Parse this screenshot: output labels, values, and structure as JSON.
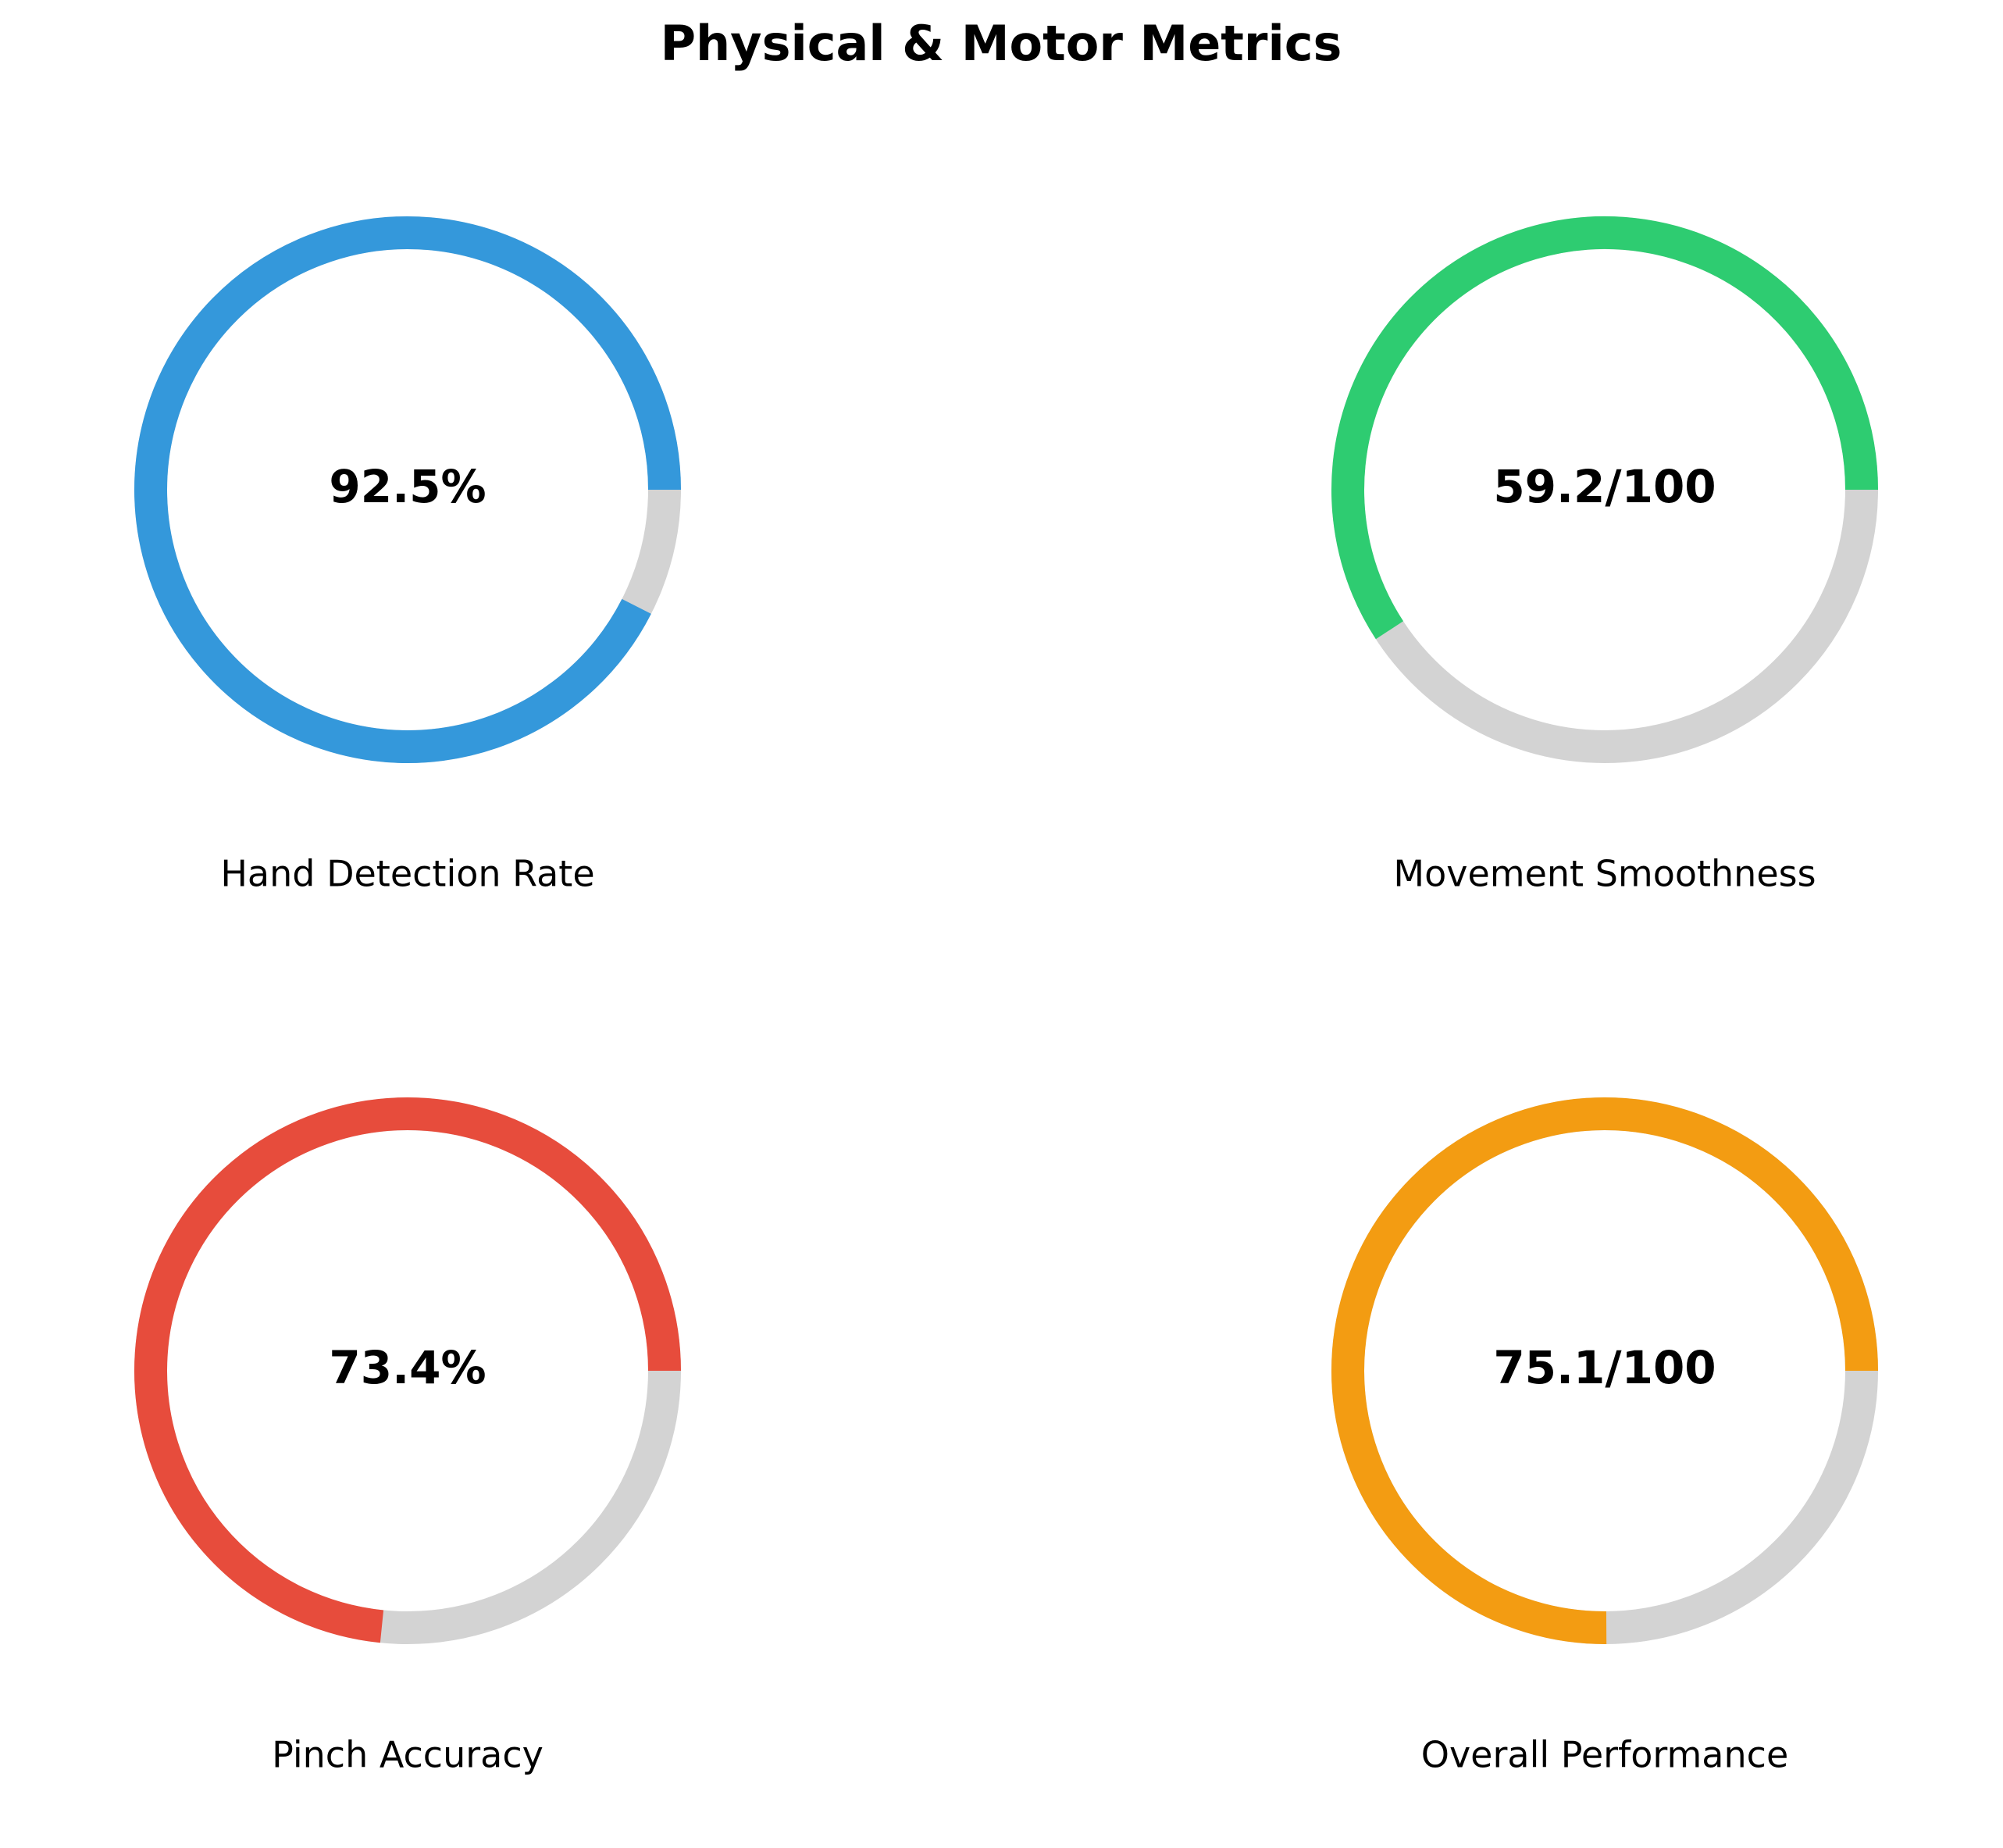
{
  "chart_data": {
    "type": "gauge",
    "title": "Physical & Motor Metrics",
    "track_color": "#d3d3d3",
    "gauges": [
      {
        "label": "Hand Detection Rate",
        "value": 92.5,
        "max": 100,
        "display": "92.5%",
        "color": "#3498db"
      },
      {
        "label": "Movement Smoothness",
        "value": 59.2,
        "max": 100,
        "display": "59.2/100",
        "color": "#2ecc71"
      },
      {
        "label": "Pinch Accuracy",
        "value": 73.4,
        "max": 100,
        "display": "73.4%",
        "color": "#e74c3c"
      },
      {
        "label": "Overall Performance",
        "value": 75.1,
        "max": 100,
        "display": "75.1/100",
        "color": "#f39c12"
      }
    ]
  }
}
